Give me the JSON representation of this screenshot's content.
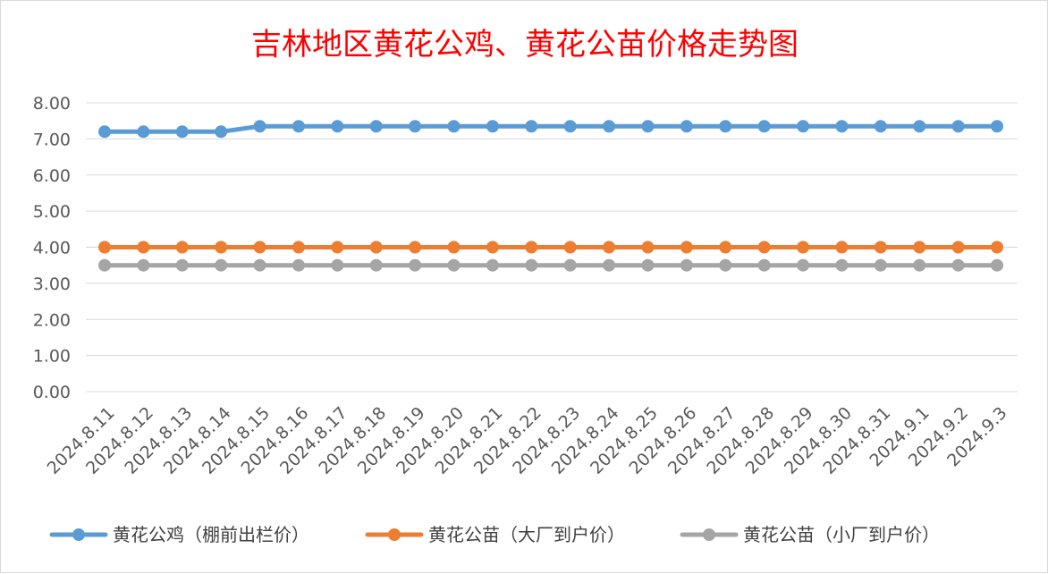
{
  "chart_data": {
    "type": "line",
    "title": "吉林地区黄花公鸡、黄花公苗价格走势图",
    "xlabel": "",
    "ylabel": "",
    "ylim": [
      0,
      8
    ],
    "ytick_step": 1,
    "ytick_labels": [
      "0.00",
      "1.00",
      "2.00",
      "3.00",
      "4.00",
      "5.00",
      "6.00",
      "7.00",
      "8.00"
    ],
    "grid": "horizontal",
    "legend_position": "bottom",
    "categories": [
      "2024.8.11",
      "2024.8.12",
      "2024.8.13",
      "2024.8.14",
      "2024.8.15",
      "2024.8.16",
      "2024.8.17",
      "2024.8.18",
      "2024.8.19",
      "2024.8.20",
      "2024.8.21",
      "2024.8.22",
      "2024.8.23",
      "2024.8.24",
      "2024.8.25",
      "2024.8.26",
      "2024.8.27",
      "2024.8.28",
      "2024.8.29",
      "2024.8.30",
      "2024.8.31",
      "2024.9.1",
      "2024.9.2",
      "2024.9.3"
    ],
    "series": [
      {
        "name": "黄花公鸡（棚前出栏价）",
        "color": "#5b9bd5",
        "values": [
          7.2,
          7.2,
          7.2,
          7.2,
          7.35,
          7.35,
          7.35,
          7.35,
          7.35,
          7.35,
          7.35,
          7.35,
          7.35,
          7.35,
          7.35,
          7.35,
          7.35,
          7.35,
          7.35,
          7.35,
          7.35,
          7.35,
          7.35,
          7.35
        ]
      },
      {
        "name": "黄花公苗（大厂到户价）",
        "color": "#ed7d31",
        "values": [
          4.0,
          4.0,
          4.0,
          4.0,
          4.0,
          4.0,
          4.0,
          4.0,
          4.0,
          4.0,
          4.0,
          4.0,
          4.0,
          4.0,
          4.0,
          4.0,
          4.0,
          4.0,
          4.0,
          4.0,
          4.0,
          4.0,
          4.0,
          4.0
        ]
      },
      {
        "name": "黄花公苗（小厂到户价）",
        "color": "#a5a5a5",
        "values": [
          3.5,
          3.5,
          3.5,
          3.5,
          3.5,
          3.5,
          3.5,
          3.5,
          3.5,
          3.5,
          3.5,
          3.5,
          3.5,
          3.5,
          3.5,
          3.5,
          3.5,
          3.5,
          3.5,
          3.5,
          3.5,
          3.5,
          3.5,
          3.5
        ]
      }
    ]
  }
}
